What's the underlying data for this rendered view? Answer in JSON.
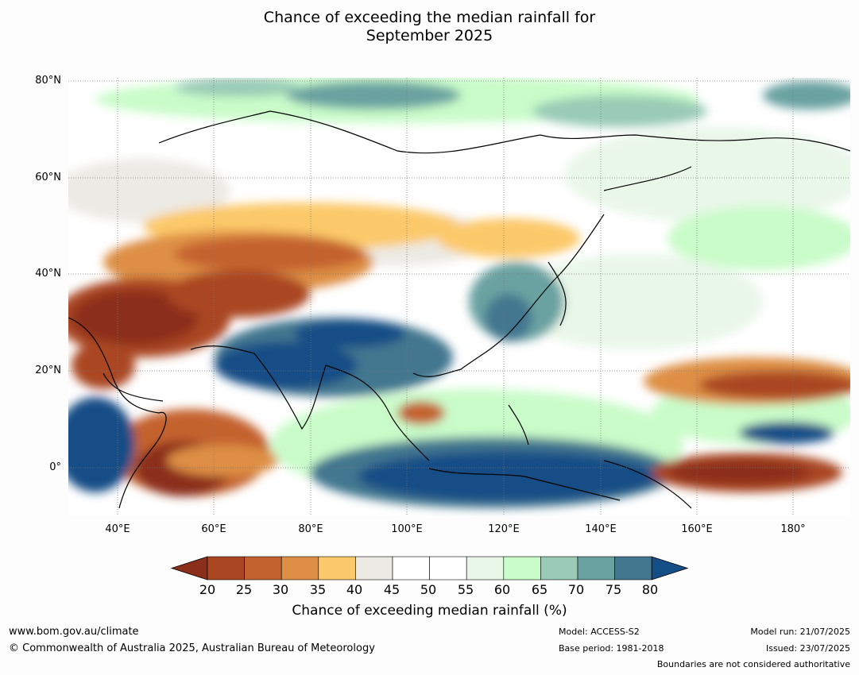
{
  "title_line1": "Chance of exceeding the median rainfall for",
  "title_line2": "September 2025",
  "lat_labels": [
    "80°N",
    "60°N",
    "40°N",
    "20°N",
    "0°"
  ],
  "lon_labels": [
    "40°E",
    "60°E",
    "80°E",
    "100°E",
    "120°E",
    "140°E",
    "160°E",
    "180°"
  ],
  "colorbar": {
    "ticks": [
      "20",
      "25",
      "30",
      "35",
      "40",
      "45",
      "50",
      "55",
      "60",
      "65",
      "70",
      "75",
      "80"
    ],
    "colors": [
      "#8c2f1a",
      "#aa4622",
      "#c4622f",
      "#de8f45",
      "#fcc96a",
      "#eceae4",
      "#ffffff",
      "#ffffff",
      "#e9f7e9",
      "#c9fcc9",
      "#99cbb6",
      "#6aa2a1",
      "#42778f",
      "#144e86"
    ],
    "title": "Chance of exceeding median rainfall (%)"
  },
  "footer": {
    "website": "www.bom.gov.au/climate",
    "copyright": "© Commonwealth of Australia 2025, Australian Bureau of Meteorology",
    "model": "Model: ACCESS-S2",
    "base_period": "Base period: 1981-2018",
    "model_run": "Model run: 21/07/2025",
    "issued": "Issued: 23/07/2025",
    "boundaries": "Boundaries are not considered authoritative"
  }
}
